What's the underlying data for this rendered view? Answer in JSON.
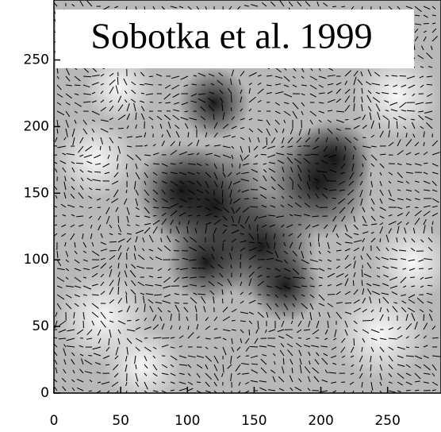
{
  "chart_data": {
    "type": "image",
    "annotation": "Sobotka et al. 1999",
    "xlim": [
      0,
      290
    ],
    "ylim": [
      0,
      295
    ],
    "xticks": [
      0,
      50,
      100,
      150,
      200,
      250
    ],
    "yticks": [
      0,
      50,
      100,
      150,
      200,
      250
    ]
  }
}
